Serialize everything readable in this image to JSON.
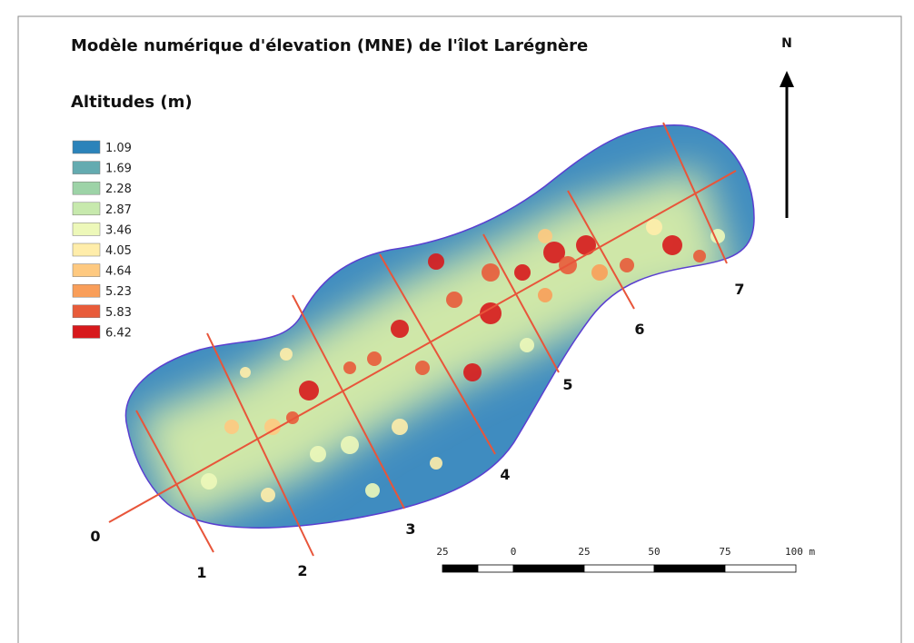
{
  "title": "Modèle numérique d'élevation (MNE) de l'îlot Larégnère",
  "legend": {
    "title": "Altitudes (m)",
    "items": [
      {
        "label": "1.09",
        "color": "#2b83ba"
      },
      {
        "label": "1.69",
        "color": "#64abb0"
      },
      {
        "label": "2.28",
        "color": "#9dd3a7"
      },
      {
        "label": "2.87",
        "color": "#c7e9ad"
      },
      {
        "label": "3.46",
        "color": "#edf8b9"
      },
      {
        "label": "4.05",
        "color": "#ffedaa"
      },
      {
        "label": "4.64",
        "color": "#fec980"
      },
      {
        "label": "5.23",
        "color": "#f99e59"
      },
      {
        "label": "5.83",
        "color": "#e85b3a"
      },
      {
        "label": "6.42",
        "color": "#d7191c"
      }
    ]
  },
  "north": "N",
  "profiles": [
    "0",
    "1",
    "2",
    "3",
    "4",
    "5",
    "6",
    "7"
  ],
  "scale": {
    "labels": [
      "25",
      "0",
      "25",
      "50",
      "75",
      "100 m"
    ]
  }
}
